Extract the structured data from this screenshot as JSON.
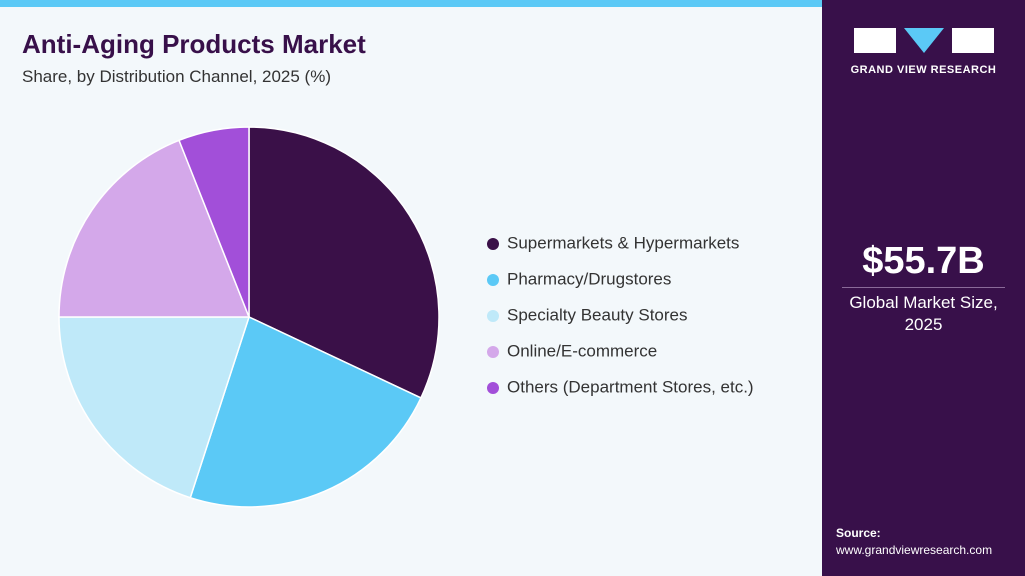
{
  "chart_data": {
    "type": "pie",
    "title": "Anti-Aging Products Market",
    "subtitle": "Share, by Distribution Channel, 2025 (%)",
    "categories": [
      "Supermarkets & Hypermarkets",
      "Pharmacy/Drugstores",
      "Specialty Beauty Stores",
      "Online/E-commerce",
      "Others (Department Stores, etc.)"
    ],
    "values": [
      32,
      23,
      20,
      19,
      6
    ],
    "colors": [
      "#3a1048",
      "#5bc9f6",
      "#bfe9f9",
      "#d4a8ea",
      "#a24fd9"
    ]
  },
  "brand": "GRAND VIEW RESEARCH",
  "market_size": "$55.7B",
  "market_size_label": "Global Market Size, 2025",
  "source_label": "Source:",
  "source_url": "www.grandviewresearch.com"
}
